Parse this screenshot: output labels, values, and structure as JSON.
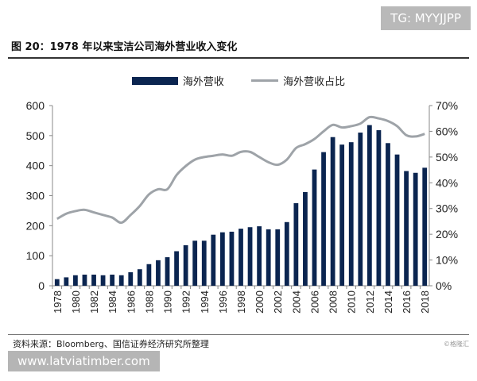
{
  "watermark": "TG: MYYJJPP",
  "site": "www.latviatimber.com",
  "copyright": "©格隆汇",
  "source": "资料来源：Bloomberg、国信证券经济研究所整理",
  "chart_data": {
    "type": "bar+line",
    "title": "图 20：1978 年以来宝洁公司海外营业收入变化",
    "legend_position": "top",
    "colors": {
      "bar": "#0b2550",
      "line": "#9ea3a8"
    },
    "x": [
      1978,
      1979,
      1980,
      1981,
      1982,
      1983,
      1984,
      1985,
      1986,
      1987,
      1988,
      1989,
      1990,
      1991,
      1992,
      1993,
      1994,
      1995,
      1996,
      1997,
      1998,
      1999,
      2000,
      2001,
      2002,
      2003,
      2004,
      2005,
      2006,
      2007,
      2008,
      2009,
      2010,
      2011,
      2012,
      2013,
      2014,
      2015,
      2016,
      2017,
      2018
    ],
    "x_tick_labels": [
      "1978",
      "1980",
      "1982",
      "1984",
      "1986",
      "1988",
      "1990",
      "1992",
      "1994",
      "1996",
      "1998",
      "2000",
      "2002",
      "2004",
      "2006",
      "2008",
      "2010",
      "2012",
      "2014",
      "2016",
      "2018"
    ],
    "series": [
      {
        "name": "海外营收",
        "type": "bar",
        "axis": "left",
        "values": [
          22,
          28,
          35,
          37,
          37,
          35,
          37,
          35,
          45,
          55,
          72,
          85,
          95,
          115,
          135,
          150,
          150,
          170,
          178,
          180,
          190,
          195,
          198,
          188,
          188,
          212,
          275,
          312,
          387,
          445,
          495,
          470,
          478,
          510,
          535,
          518,
          475,
          437,
          382,
          376,
          393
        ]
      },
      {
        "name": "海外营收占比",
        "type": "line",
        "axis": "right",
        "values": [
          26,
          28,
          29,
          29.5,
          28.5,
          27.5,
          26.5,
          24.5,
          27.5,
          31,
          35.5,
          37.5,
          37.5,
          43,
          46.5,
          49,
          50,
          50.5,
          51,
          50.5,
          52,
          52,
          50,
          48,
          47,
          49,
          53.5,
          55,
          57,
          60,
          62.5,
          61.5,
          62,
          63,
          65.5,
          65,
          64,
          62,
          58.5,
          58,
          59
        ]
      }
    ],
    "left_axis": {
      "range": [
        0,
        600
      ],
      "ticks": [
        "0",
        "100",
        "200",
        "300",
        "400",
        "500",
        "600"
      ]
    },
    "right_axis": {
      "range": [
        0,
        70
      ],
      "ticks": [
        "0%",
        "10%",
        "20%",
        "30%",
        "40%",
        "50%",
        "60%",
        "70%"
      ]
    }
  }
}
